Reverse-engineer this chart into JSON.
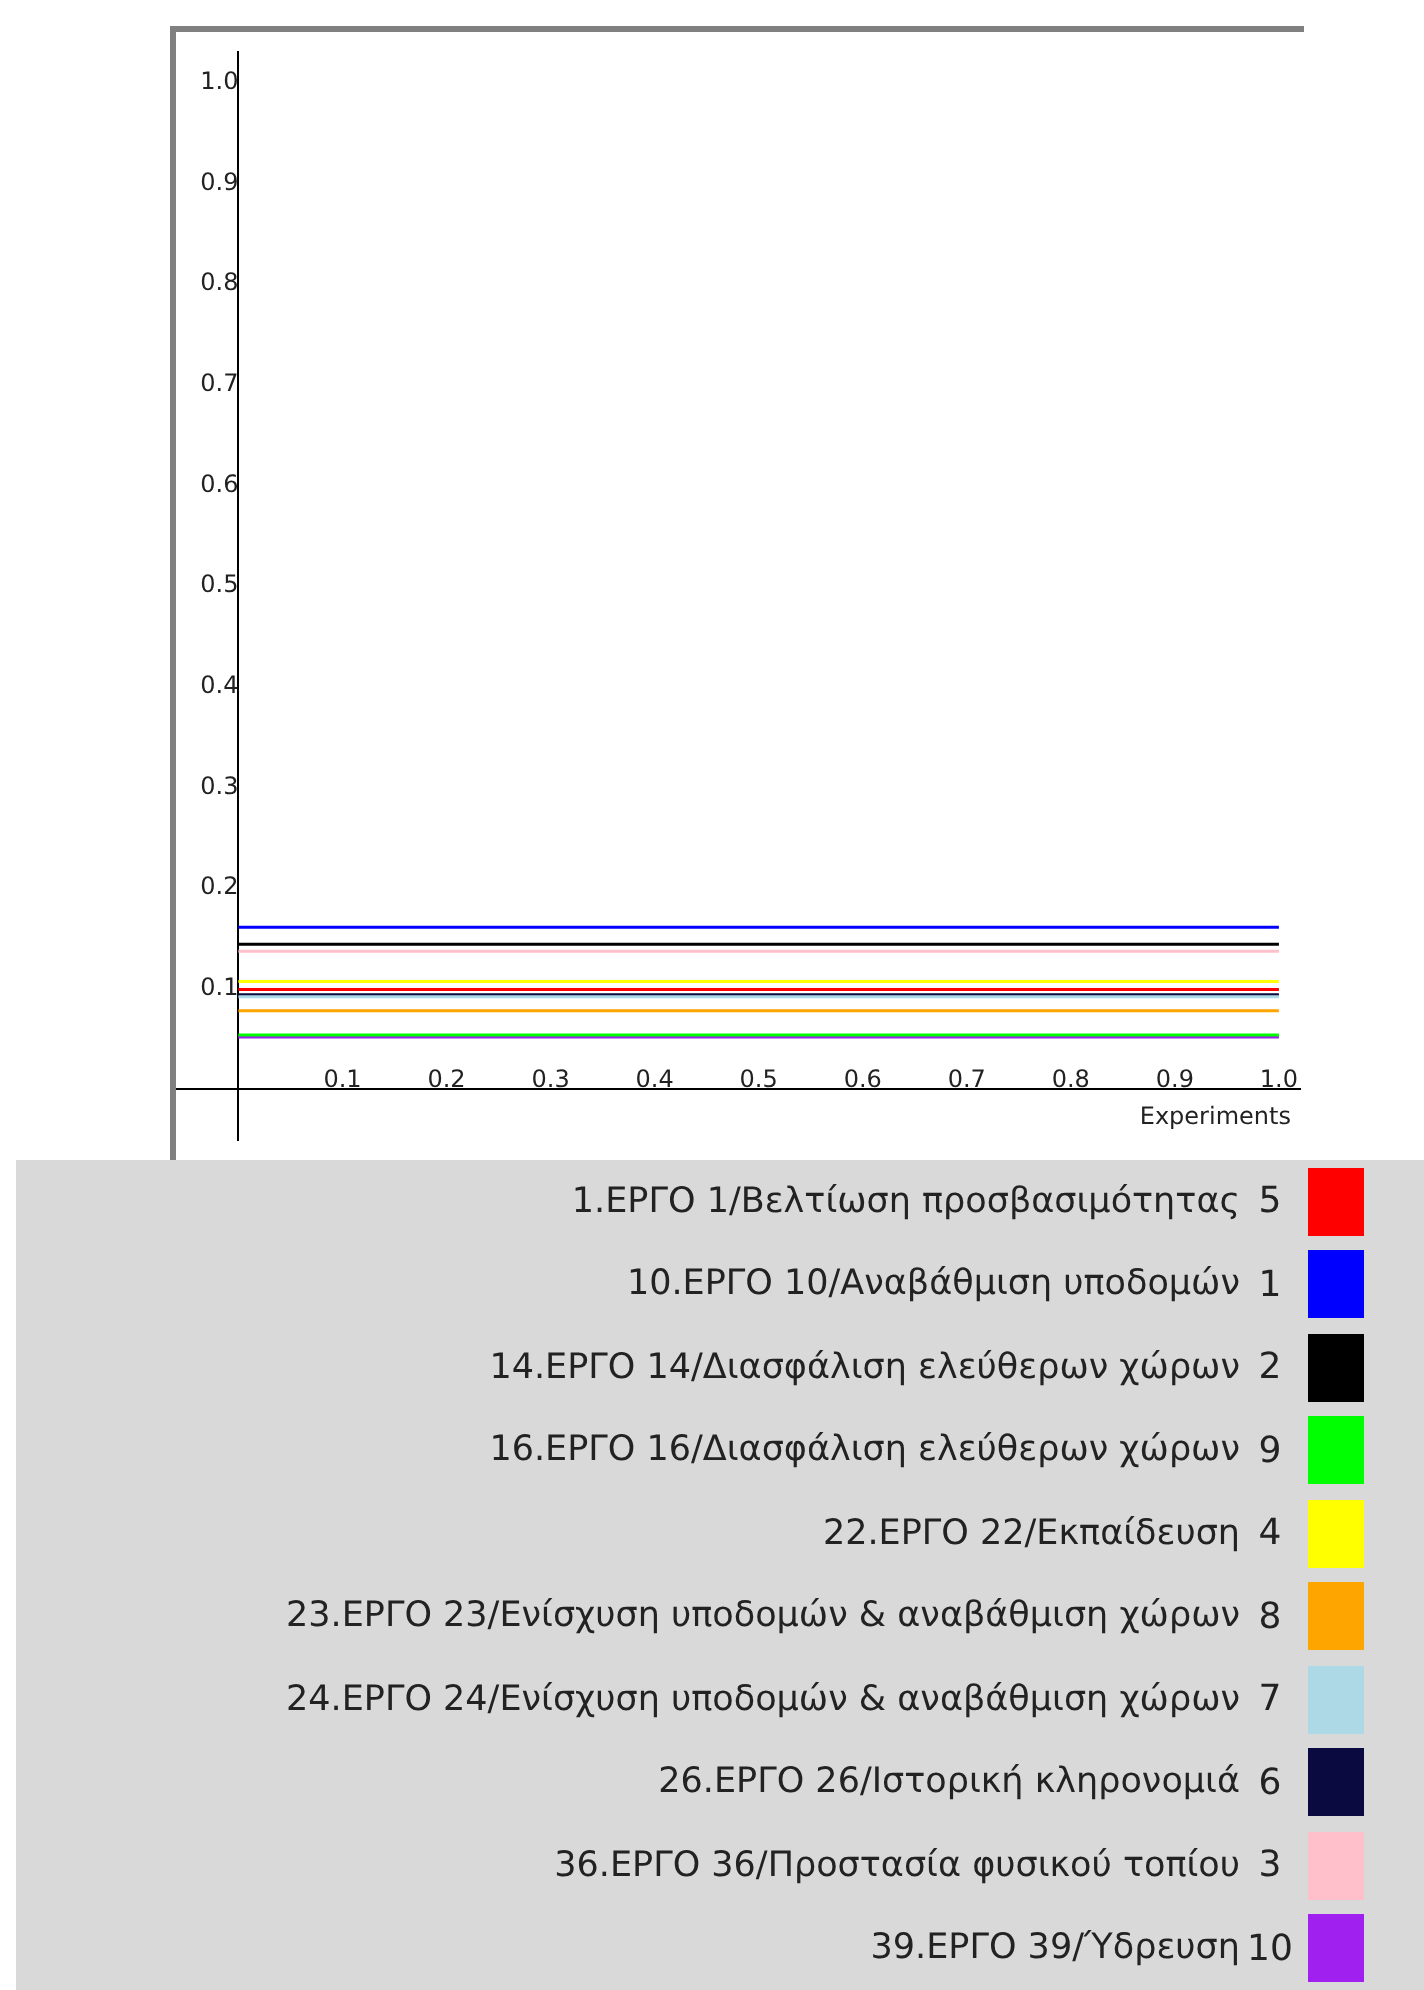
{
  "chart_data": {
    "type": "line",
    "xlabel": "Experiments",
    "xlim": [
      -0.06,
      1.02
    ],
    "ylim": [
      -0.05,
      1.03
    ],
    "xticks": [
      0.1,
      0.2,
      0.3,
      0.4,
      0.5,
      0.6,
      0.7,
      0.8,
      0.9,
      {
        "value": 1,
        "label": "1.0"
      }
    ],
    "yticks": [
      0.1,
      0.2,
      0.3,
      0.4,
      0.5,
      0.6,
      0.7,
      0.8,
      0.9,
      {
        "value": 1,
        "label": "1.0"
      }
    ],
    "grid": false,
    "legend": "bottom",
    "marker": "none",
    "line_style": "solid",
    "annotations": [
      "5",
      "1",
      "2",
      "9",
      "4",
      "8",
      "7",
      "6",
      "3",
      "10"
    ],
    "x": [
      0,
      1
    ],
    "series": [
      {
        "name": "1.ΕΡΓΟ  1/Βελτίωση προσβασιμότητας",
        "color": "#ff0000",
        "values": [
          0.099,
          0.099
        ]
      },
      {
        "name": "10.ΕΡΓΟ 10/Αναβάθμιση υποδομών",
        "color": "#0000ff",
        "values": [
          0.161,
          0.161
        ]
      },
      {
        "name": "14.ΕΡΓΟ 14/Διασφάλιση ελεύθερων χώρων",
        "color": "#000000",
        "values": [
          0.144,
          0.144
        ]
      },
      {
        "name": "16.ΕΡΓΟ 16/Διασφάλιση ελεύθερων χώρων",
        "color": "#00ff00",
        "values": [
          0.054,
          0.054
        ]
      },
      {
        "name": "22.ΕΡΓΟ 22/Εκπαίδευση",
        "color": "#ffff00",
        "values": [
          0.107,
          0.107
        ]
      },
      {
        "name": "23.ΕΡΓΟ 23/Ενίσχυση υποδομών & αναβάθμιση χώρων",
        "color": "#ffa500",
        "values": [
          0.078,
          0.078
        ]
      },
      {
        "name": "24.ΕΡΓΟ 24/Ενίσχυση υποδομών & αναβάθμιση χώρων",
        "color": "#add8e6",
        "values": [
          0.092,
          0.092
        ]
      },
      {
        "name": "26.ΕΡΓΟ 26/Ιστορική κληρονομιά",
        "color": "#0a0a40",
        "values": [
          0.094,
          0.094
        ]
      },
      {
        "name": "36.ΕΡΓΟ 36/Προστασία φυσικού τοπίου",
        "color": "#ffc0cb",
        "values": [
          0.137,
          0.137
        ]
      },
      {
        "name": "39.ΕΡΓΟ 39/Ύδρευση",
        "color": "#a020f0",
        "values": [
          0.052,
          0.052
        ]
      }
    ]
  }
}
